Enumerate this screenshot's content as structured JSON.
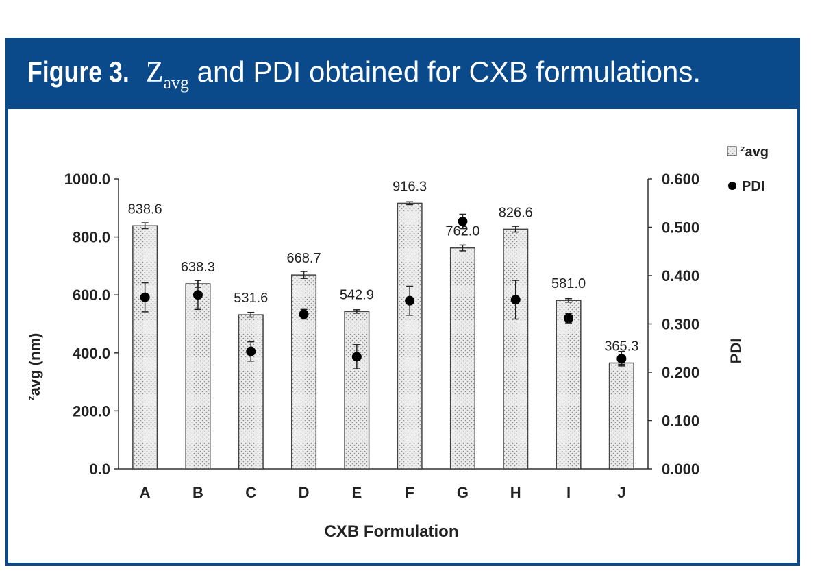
{
  "figure": {
    "label": "Figure 3.",
    "z_letter": "Z",
    "z_subscript": "avg",
    "caption_rest": "and PDI obtained for CXB formulations."
  },
  "colors": {
    "header_blue": "#0b4a8a",
    "bar_fill": "#e6e6e6",
    "bar_stroke": "#555555",
    "pdi_marker": "#000000"
  },
  "chart_data": {
    "type": "bar",
    "xlabel": "CXB Formulation",
    "ylabel": "zavg (nm)",
    "ylabel_sup": "z",
    "ylabel_main": "avg (nm)",
    "y2label": "PDI",
    "ylim": [
      0,
      1000
    ],
    "y2lim": [
      0,
      0.6
    ],
    "yticks": [
      "0.0",
      "200.0",
      "400.0",
      "600.0",
      "800.0",
      "1000.0"
    ],
    "y2ticks": [
      "0.000",
      "0.100",
      "0.200",
      "0.300",
      "0.400",
      "0.500",
      "0.600"
    ],
    "categories": [
      "A",
      "B",
      "C",
      "D",
      "E",
      "F",
      "G",
      "H",
      "I",
      "J"
    ],
    "legend_position": "top-right",
    "series": [
      {
        "name": "zavg",
        "legend_sup": "z",
        "legend_main": "avg",
        "kind": "bar",
        "values": [
          838.6,
          638.3,
          531.6,
          668.7,
          542.9,
          916.3,
          762.0,
          826.6,
          581.0,
          365.3
        ],
        "labels": [
          "838.6",
          "638.3",
          "531.6",
          "668.7",
          "542.9",
          "916.3",
          "762.0",
          "826.6",
          "581.0",
          "365.3"
        ],
        "errors": [
          10,
          12,
          8,
          12,
          6,
          5,
          10,
          10,
          6,
          5
        ]
      },
      {
        "name": "PDI",
        "kind": "point",
        "axis": "right",
        "values": [
          0.355,
          0.36,
          0.243,
          0.32,
          0.232,
          0.348,
          0.512,
          0.35,
          0.312,
          0.228
        ],
        "errors": [
          0.03,
          0.03,
          0.02,
          0.01,
          0.025,
          0.03,
          0.015,
          0.04,
          0.01,
          0.015
        ]
      }
    ]
  }
}
